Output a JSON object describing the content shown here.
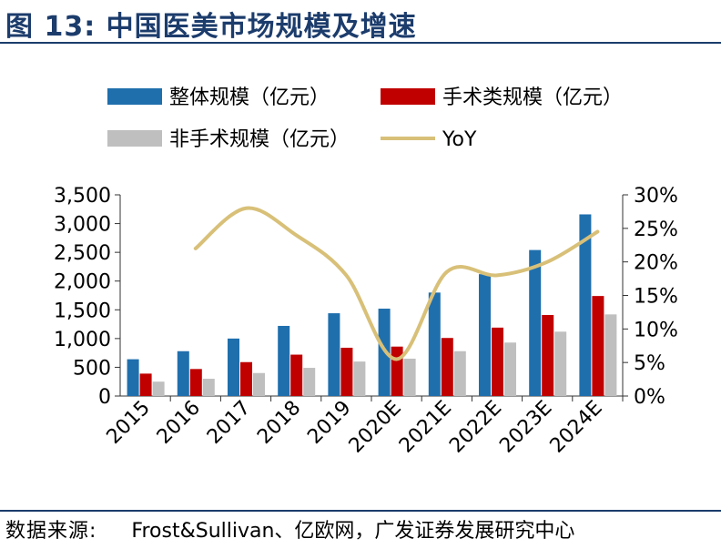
{
  "figure": {
    "title": "图  13:  中国医美市场规模及增速",
    "source_label": "数据来源:",
    "source_text": "Frost&Sullivan、亿欧网，广发证券发展研究中心"
  },
  "chart_data": {
    "type": "bar",
    "title": "中国医美市场规模及增速",
    "categories": [
      "2015",
      "2016",
      "2017",
      "2018",
      "2019",
      "2020E",
      "2021E",
      "2022E",
      "2023E",
      "2024E"
    ],
    "series": [
      {
        "name": "整体规模（亿元）",
        "kind": "bar",
        "axis": "left",
        "color": "#1f6fad",
        "values": [
          640,
          780,
          1000,
          1220,
          1440,
          1520,
          1800,
          2120,
          2540,
          3160
        ]
      },
      {
        "name": "手术类规模（亿元）",
        "kind": "bar",
        "axis": "left",
        "color": "#c00000",
        "values": [
          390,
          470,
          590,
          720,
          840,
          860,
          1010,
          1190,
          1410,
          1740
        ]
      },
      {
        "name": "非手术规模（亿元）",
        "kind": "bar",
        "axis": "left",
        "color": "#bfbfbf",
        "values": [
          250,
          300,
          400,
          490,
          600,
          650,
          780,
          930,
          1120,
          1420
        ]
      },
      {
        "name": "YoY",
        "kind": "line",
        "axis": "right",
        "color": "#d8c078",
        "values": [
          null,
          22.0,
          28.0,
          24.0,
          18.0,
          5.5,
          18.5,
          18.0,
          20.0,
          24.5
        ]
      }
    ],
    "y_left": {
      "min": 0,
      "max": 3500,
      "ticks": [
        0,
        500,
        1000,
        1500,
        2000,
        2500,
        3000,
        3500
      ],
      "labels": [
        "0",
        "500",
        "1,000",
        "1,500",
        "2,000",
        "2,500",
        "3,000",
        "3,500"
      ]
    },
    "y_right": {
      "min": 0,
      "max": 30,
      "ticks": [
        0,
        5,
        10,
        15,
        20,
        25,
        30
      ],
      "labels": [
        "0%",
        "5%",
        "10%",
        "15%",
        "20%",
        "25%",
        "30%"
      ]
    },
    "legend_position": "top",
    "grid": false
  }
}
